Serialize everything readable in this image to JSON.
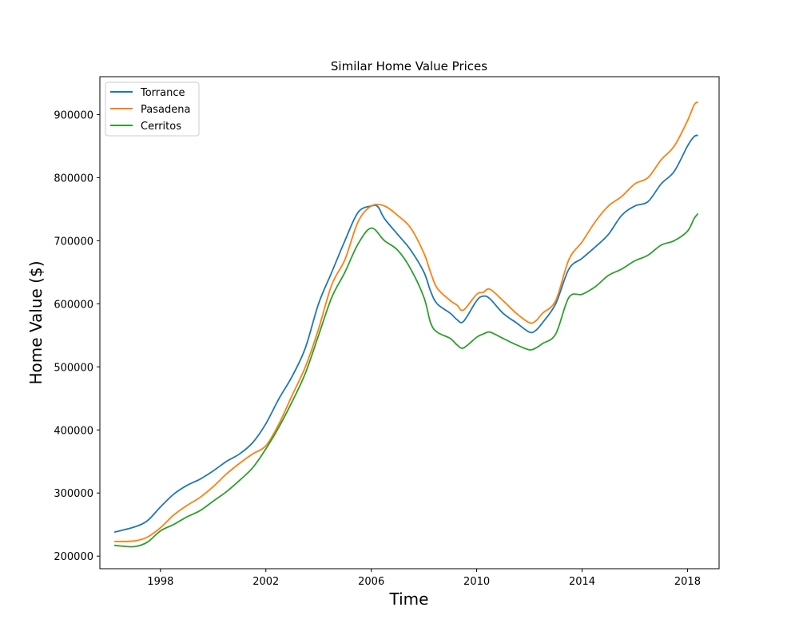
{
  "chart_data": {
    "type": "line",
    "title": "Similar Home Value Prices",
    "xlabel": "Time",
    "ylabel": "Home Value ($)",
    "xlim": [
      1995.7,
      2019.2
    ],
    "ylim": [
      180000,
      960000
    ],
    "x_ticks": [
      1998,
      2002,
      2006,
      2010,
      2014,
      2018
    ],
    "x_tick_labels": [
      "1998",
      "2002",
      "2006",
      "2010",
      "2014",
      "2018"
    ],
    "y_ticks": [
      200000,
      300000,
      400000,
      500000,
      600000,
      700000,
      800000,
      900000
    ],
    "y_tick_labels": [
      "200000",
      "300000",
      "400000",
      "500000",
      "600000",
      "700000",
      "800000",
      "900000"
    ],
    "grid": false,
    "legend_position": "top-left",
    "series": [
      {
        "name": "Torrance",
        "color": "#1f77b4",
        "x": [
          1996.25,
          1997,
          1997.5,
          1998,
          1998.5,
          1999,
          1999.5,
          2000,
          2000.5,
          2001,
          2001.5,
          2002,
          2002.5,
          2003,
          2003.5,
          2004,
          2004.5,
          2005,
          2005.5,
          2006,
          2006.25,
          2006.5,
          2007,
          2007.5,
          2008,
          2008.25,
          2008.5,
          2009,
          2009.25,
          2009.5,
          2010,
          2010.25,
          2010.5,
          2011,
          2011.5,
          2012,
          2012.25,
          2012.5,
          2013,
          2013.5,
          2014,
          2014.5,
          2015,
          2015.5,
          2016,
          2016.5,
          2017,
          2017.5,
          2018,
          2018.25,
          2018.4
        ],
        "values": [
          238000,
          246000,
          256000,
          278000,
          298000,
          312000,
          322000,
          335000,
          350000,
          362000,
          380000,
          410000,
          450000,
          485000,
          530000,
          600000,
          650000,
          700000,
          745000,
          755000,
          754000,
          735000,
          710000,
          685000,
          650000,
          620000,
          600000,
          585000,
          575000,
          572000,
          605000,
          612000,
          608000,
          585000,
          570000,
          555000,
          558000,
          570000,
          600000,
          655000,
          672000,
          690000,
          710000,
          740000,
          755000,
          762000,
          790000,
          810000,
          850000,
          865000,
          867000
        ]
      },
      {
        "name": "Pasadena",
        "color": "#ff7f0e",
        "x": [
          1996.25,
          1997,
          1997.5,
          1998,
          1998.5,
          1999,
          1999.5,
          2000,
          2000.5,
          2001,
          2001.5,
          2002,
          2002.5,
          2003,
          2003.5,
          2004,
          2004.5,
          2005,
          2005.5,
          2006,
          2006.5,
          2007,
          2007.5,
          2008,
          2008.25,
          2008.5,
          2009,
          2009.25,
          2009.5,
          2010,
          2010.25,
          2010.5,
          2011,
          2011.5,
          2012,
          2012.25,
          2012.5,
          2013,
          2013.5,
          2014,
          2014.5,
          2015,
          2015.5,
          2016,
          2016.5,
          2017,
          2017.5,
          2018,
          2018.25,
          2018.4
        ],
        "values": [
          223000,
          224000,
          230000,
          245000,
          265000,
          280000,
          293000,
          310000,
          330000,
          347000,
          362000,
          375000,
          410000,
          455000,
          500000,
          560000,
          630000,
          670000,
          730000,
          755000,
          755000,
          740000,
          720000,
          680000,
          650000,
          625000,
          605000,
          598000,
          590000,
          615000,
          618000,
          623000,
          605000,
          585000,
          570000,
          573000,
          585000,
          605000,
          670000,
          698000,
          730000,
          755000,
          770000,
          790000,
          800000,
          828000,
          850000,
          890000,
          915000,
          920000
        ]
      },
      {
        "name": "Cerritos",
        "color": "#2ca02c",
        "x": [
          1996.25,
          1997,
          1997.5,
          1998,
          1998.5,
          1999,
          1999.5,
          2000,
          2000.5,
          2001,
          2001.5,
          2002,
          2002.5,
          2003,
          2003.5,
          2004,
          2004.5,
          2005,
          2005.5,
          2006,
          2006.5,
          2007,
          2007.5,
          2008,
          2008.25,
          2008.5,
          2009,
          2009.25,
          2009.5,
          2010,
          2010.25,
          2010.5,
          2011,
          2011.5,
          2012,
          2012.25,
          2012.5,
          2013,
          2013.5,
          2014,
          2014.5,
          2015,
          2015.5,
          2016,
          2016.5,
          2017,
          2017.5,
          2018,
          2018.25,
          2018.4
        ],
        "values": [
          217000,
          215000,
          222000,
          240000,
          250000,
          262000,
          272000,
          287000,
          302000,
          320000,
          340000,
          370000,
          405000,
          445000,
          490000,
          550000,
          610000,
          650000,
          695000,
          720000,
          700000,
          685000,
          655000,
          610000,
          570000,
          555000,
          545000,
          535000,
          530000,
          547000,
          552000,
          555000,
          545000,
          535000,
          527000,
          530000,
          537000,
          552000,
          610000,
          615000,
          627000,
          645000,
          655000,
          668000,
          677000,
          693000,
          700000,
          715000,
          735000,
          743000
        ]
      }
    ]
  }
}
